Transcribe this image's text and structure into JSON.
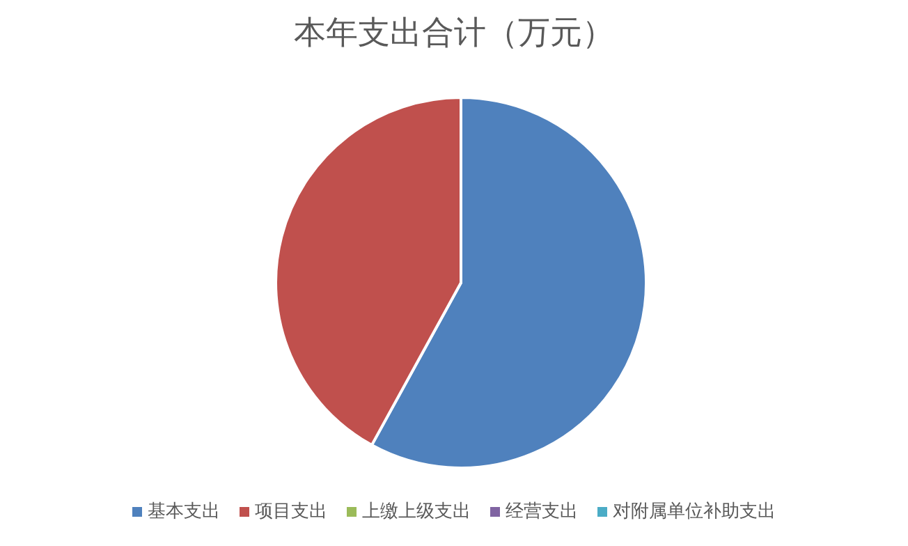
{
  "chart_data": {
    "type": "pie",
    "title": "本年支出合计（万元）",
    "categories": [
      "基本支出",
      "项目支出",
      "上缴上级支出",
      "经营支出",
      "对附属单位补助支出"
    ],
    "values": [
      58,
      42,
      0,
      0,
      0
    ],
    "colors": [
      "#4f81bd",
      "#c0504d",
      "#9bbb59",
      "#8064a2",
      "#4bacc6"
    ],
    "legend": "bottom"
  }
}
